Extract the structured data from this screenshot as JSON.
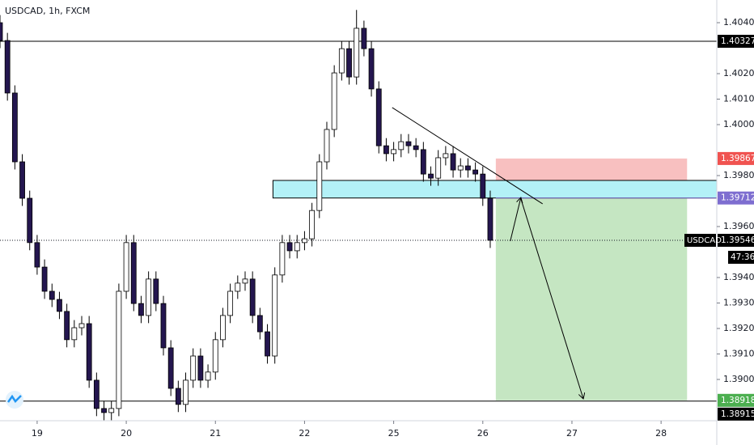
{
  "chart_data": {
    "type": "candlestick",
    "title": "USDCAD, 1h, FXCM",
    "x": [
      -10,
      -8,
      -6,
      -4,
      -2,
      0,
      2,
      4,
      6,
      8,
      10,
      12,
      14,
      16,
      18,
      20,
      22,
      24,
      26,
      28,
      30,
      32,
      34,
      36,
      38,
      40,
      42,
      44,
      46,
      48,
      50,
      52,
      54,
      56,
      58,
      60,
      62,
      64,
      66,
      68,
      70,
      72,
      74,
      76,
      78,
      80,
      82,
      84,
      86,
      88,
      90,
      92,
      94,
      96,
      98,
      100,
      102,
      104,
      106,
      108,
      110,
      112,
      114,
      116,
      118,
      120,
      122
    ],
    "open": [
      1.404,
      1.4033,
      1.40124,
      1.39854,
      1.39711,
      1.39537,
      1.39441,
      1.39346,
      1.39314,
      1.39267,
      1.39156,
      1.39203,
      1.39219,
      1.38997,
      1.38886,
      1.3887,
      1.38886,
      1.39346,
      1.39537,
      1.39298,
      1.39251,
      1.39394,
      1.39298,
      1.39124,
      1.38965,
      1.38902,
      1.38997,
      1.39092,
      1.38997,
      1.39029,
      1.39156,
      1.39251,
      1.39346,
      1.39378,
      1.39394,
      1.39251,
      1.39187,
      1.39092,
      1.3941,
      1.39537,
      1.39505,
      1.39537,
      1.39552,
      1.39663,
      1.39854,
      1.39981,
      1.40203,
      1.40298,
      1.40187,
      1.40378,
      1.40298,
      1.4014,
      1.39917,
      1.39886,
      1.39902,
      1.39933,
      1.39917,
      1.39902,
      1.39806,
      1.3979,
      1.3987,
      1.39886,
      1.39822,
      1.39838,
      1.39822,
      1.39806,
      1.39711
    ],
    "high": [
      1.4043,
      1.4036,
      1.40154,
      1.39884,
      1.39741,
      1.39567,
      1.39471,
      1.39376,
      1.39344,
      1.39297,
      1.39233,
      1.39249,
      1.39249,
      1.39027,
      1.38916,
      1.38916,
      1.39376,
      1.39567,
      1.39567,
      1.39328,
      1.39424,
      1.39424,
      1.39328,
      1.39154,
      1.38995,
      1.39027,
      1.39122,
      1.39122,
      1.39059,
      1.39186,
      1.39281,
      1.39376,
      1.39408,
      1.39424,
      1.39424,
      1.39281,
      1.39217,
      1.3944,
      1.39567,
      1.39567,
      1.39567,
      1.39582,
      1.39693,
      1.39884,
      1.40011,
      1.40233,
      1.40328,
      1.40328,
      1.4045,
      1.40408,
      1.40328,
      1.4017,
      1.39947,
      1.39932,
      1.39963,
      1.39963,
      1.39947,
      1.39932,
      1.39836,
      1.399,
      1.39916,
      1.39916,
      1.39868,
      1.39868,
      1.39852,
      1.39836,
      1.39741
    ],
    "low": [
      1.403,
      1.40094,
      1.39824,
      1.39681,
      1.39507,
      1.39411,
      1.39316,
      1.39284,
      1.39237,
      1.39126,
      1.39126,
      1.39173,
      1.38967,
      1.38856,
      1.3884,
      1.3884,
      1.38856,
      1.39316,
      1.39268,
      1.39221,
      1.39221,
      1.39268,
      1.39094,
      1.38935,
      1.38872,
      1.38872,
      1.38967,
      1.38967,
      1.38967,
      1.38999,
      1.39126,
      1.39221,
      1.39316,
      1.39348,
      1.39221,
      1.39157,
      1.39062,
      1.39062,
      1.3938,
      1.39475,
      1.39475,
      1.39507,
      1.39522,
      1.39633,
      1.39824,
      1.39951,
      1.40173,
      1.40157,
      1.40157,
      1.40268,
      1.4011,
      1.39887,
      1.39856,
      1.39856,
      1.39872,
      1.39887,
      1.39872,
      1.39776,
      1.3976,
      1.3976,
      1.3984,
      1.39792,
      1.39792,
      1.39792,
      1.39776,
      1.39681,
      1.39516
    ],
    "close": [
      1.4033,
      1.40124,
      1.39854,
      1.39711,
      1.39537,
      1.39441,
      1.39346,
      1.39314,
      1.39267,
      1.39156,
      1.39203,
      1.39219,
      1.38997,
      1.38886,
      1.3887,
      1.38886,
      1.39346,
      1.39537,
      1.39298,
      1.39251,
      1.39394,
      1.39298,
      1.39124,
      1.38965,
      1.38902,
      1.38997,
      1.39092,
      1.38997,
      1.39029,
      1.39156,
      1.39251,
      1.39346,
      1.39378,
      1.39394,
      1.39251,
      1.39187,
      1.39092,
      1.3941,
      1.39537,
      1.39505,
      1.39537,
      1.39552,
      1.39663,
      1.39854,
      1.39981,
      1.40203,
      1.40298,
      1.40187,
      1.40378,
      1.40298,
      1.4014,
      1.39917,
      1.39886,
      1.39902,
      1.39933,
      1.39917,
      1.39902,
      1.39806,
      1.3979,
      1.3987,
      1.39886,
      1.39822,
      1.39838,
      1.39822,
      1.39806,
      1.39711,
      1.39546
    ],
    "up_color": "#ffffff",
    "down_color": "#24164f",
    "xlim": [
      -10,
      183
    ],
    "xticks": [
      {
        "value": 0,
        "label": "19"
      },
      {
        "value": 24,
        "label": "20"
      },
      {
        "value": 48,
        "label": "21"
      },
      {
        "value": 72,
        "label": "22"
      },
      {
        "value": 96,
        "label": "25"
      },
      {
        "value": 120,
        "label": "26"
      },
      {
        "value": 144,
        "label": "27"
      },
      {
        "value": 168,
        "label": "28"
      }
    ],
    "ylim": [
      1.38838,
      1.40489
    ],
    "yticks": [
      {
        "value": 1.404,
        "label": "1.40400"
      },
      {
        "value": 1.402,
        "label": "1.40200"
      },
      {
        "value": 1.401,
        "label": "1.40100"
      },
      {
        "value": 1.4,
        "label": "1.40000"
      },
      {
        "value": 1.398,
        "label": "1.39800"
      },
      {
        "value": 1.396,
        "label": "1.39600"
      },
      {
        "value": 1.394,
        "label": "1.39400"
      },
      {
        "value": 1.393,
        "label": "1.39300"
      },
      {
        "value": 1.392,
        "label": "1.39200"
      },
      {
        "value": 1.391,
        "label": "1.39100"
      },
      {
        "value": 1.39,
        "label": "1.39000"
      }
    ],
    "price_lines": [
      1.40327,
      1.38915
    ],
    "last_price": {
      "symbol": "USDCAD",
      "value": 1.39546,
      "countdown": "47:36"
    },
    "zone": {
      "x0": 63.5,
      "top": 1.39781,
      "bottom": 1.39712,
      "color": "#b3f1f7"
    },
    "position": {
      "x0": 123.5,
      "x1": 175,
      "entry": 1.39712,
      "stop": 1.39867,
      "target": 1.38918,
      "stop_fill": "#f8c0c0",
      "target_fill": "#c5e6c2",
      "stop_label_color": "#f05350",
      "entry_label_color": "#7e6ed0",
      "target_label_color": "#4caf50"
    },
    "trendline": {
      "x": [
        95.6,
        136.1
      ],
      "y": [
        1.40067,
        1.39689
      ]
    },
    "projection": {
      "x": [
        127.4,
        130.2,
        147
      ],
      "y": [
        1.39543,
        1.39711,
        1.38927
      ]
    }
  }
}
